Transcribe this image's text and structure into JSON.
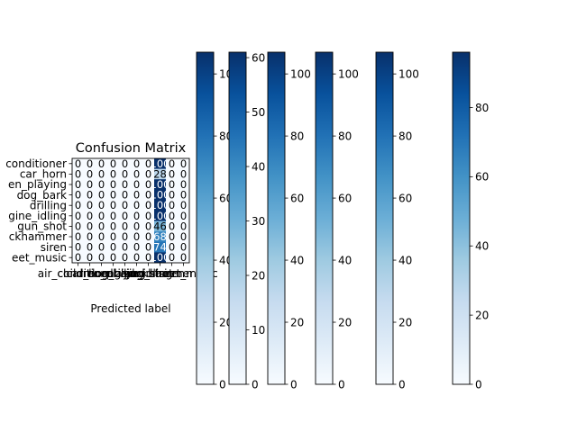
{
  "chart_data": {
    "type": "heatmap",
    "title": "Confusion Matrix",
    "xlabel": "Predicted label",
    "ylabel": "",
    "row_labels": [
      "air_conditioner",
      "car_horn",
      "children_playing",
      "dog_bark",
      "drilling",
      "engine_idling",
      "gun_shot",
      "jackhammer",
      "siren",
      "street_music"
    ],
    "col_labels": [
      "air_conditioner",
      "car_horn",
      "children_playing",
      "dog_bark",
      "drilling",
      "engine_idling",
      "gun_shot",
      "jackhammer",
      "siren",
      "street_music"
    ],
    "visible_row_labels": [
      "conditioner",
      "car_horn",
      "en_playing",
      "dog_bark",
      "drilling",
      "gine_idling",
      "gun_shot",
      "ckhammer",
      "siren",
      "eet_music"
    ],
    "values": [
      [
        0,
        0,
        0,
        0,
        0,
        0,
        0,
        100,
        0,
        0
      ],
      [
        0,
        0,
        0,
        0,
        0,
        0,
        0,
        28,
        0,
        0
      ],
      [
        0,
        0,
        0,
        0,
        0,
        0,
        0,
        100,
        0,
        0
      ],
      [
        0,
        0,
        0,
        0,
        0,
        0,
        0,
        100,
        0,
        0
      ],
      [
        0,
        0,
        0,
        0,
        0,
        0,
        0,
        100,
        0,
        0
      ],
      [
        0,
        0,
        0,
        0,
        0,
        0,
        0,
        100,
        0,
        0
      ],
      [
        0,
        0,
        0,
        0,
        0,
        0,
        0,
        46,
        0,
        0
      ],
      [
        0,
        0,
        0,
        0,
        0,
        0,
        0,
        68,
        0,
        0
      ],
      [
        0,
        0,
        0,
        0,
        0,
        0,
        0,
        74,
        0,
        0
      ],
      [
        0,
        0,
        0,
        0,
        0,
        0,
        0,
        100,
        0,
        0
      ]
    ],
    "colormap": "Blues",
    "colorbars": [
      {
        "max": 107,
        "ticks": [
          0,
          20,
          40,
          60,
          80,
          100
        ]
      },
      {
        "max": 61,
        "ticks": [
          0,
          10,
          20,
          30,
          40,
          50,
          60
        ]
      },
      {
        "max": 107,
        "ticks": [
          0,
          20,
          40,
          60,
          80,
          100
        ]
      },
      {
        "max": 107,
        "ticks": [
          0,
          20,
          40,
          60,
          80,
          100
        ]
      },
      {
        "max": 107,
        "ticks": [
          0,
          20,
          40,
          60,
          80,
          100
        ]
      },
      {
        "max": 96,
        "ticks": [
          0,
          20,
          40,
          60,
          80
        ]
      }
    ]
  }
}
